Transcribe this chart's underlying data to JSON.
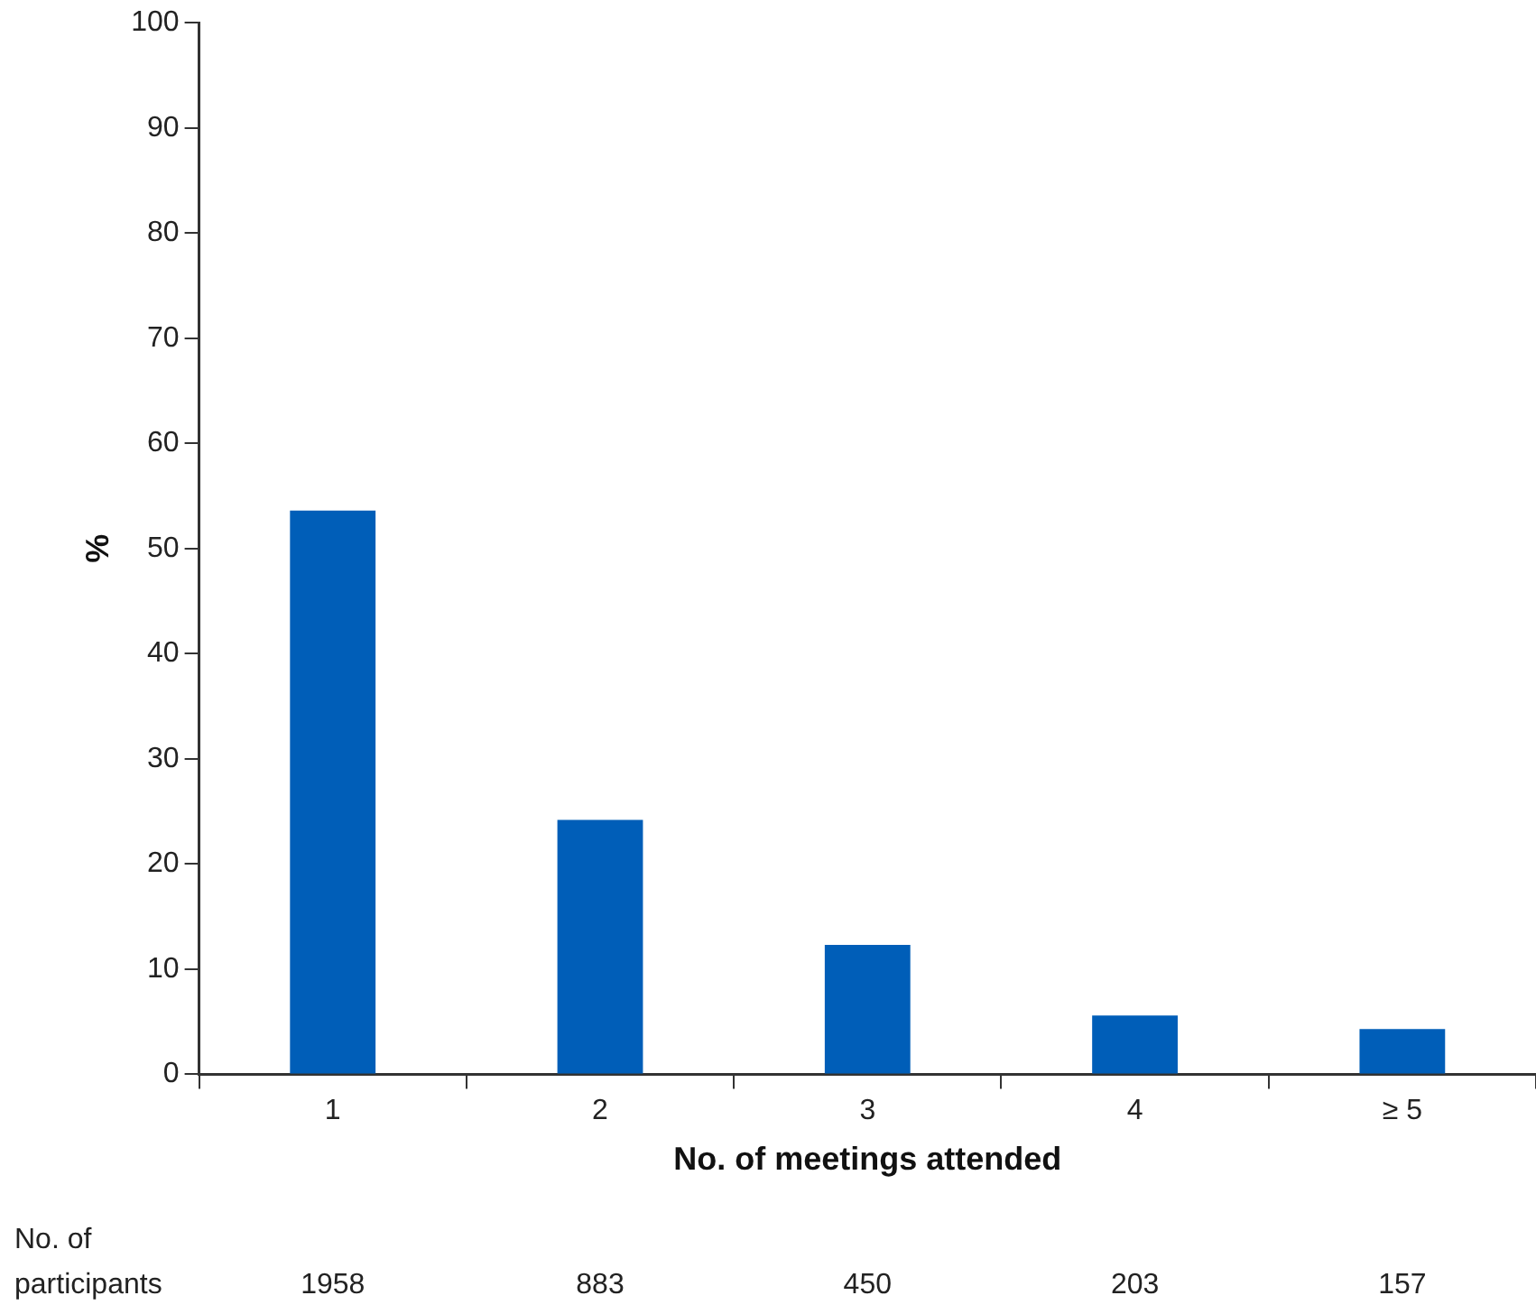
{
  "chart_data": {
    "type": "bar",
    "xlabel": "No. of meetings attended",
    "ylabel": "%",
    "categories": [
      "1",
      "2",
      "3",
      "4",
      "≥ 5"
    ],
    "values": [
      53.6,
      24.2,
      12.3,
      5.6,
      4.3
    ],
    "color": "#005eb8",
    "ylim": [
      0,
      100
    ],
    "yticks": [
      0,
      10,
      20,
      30,
      40,
      50,
      60,
      70,
      80,
      90,
      100
    ],
    "grid": false,
    "legend": false,
    "annotations": [
      "No. of\nparticipants",
      "1958",
      "883",
      "450",
      "203",
      "157"
    ]
  }
}
